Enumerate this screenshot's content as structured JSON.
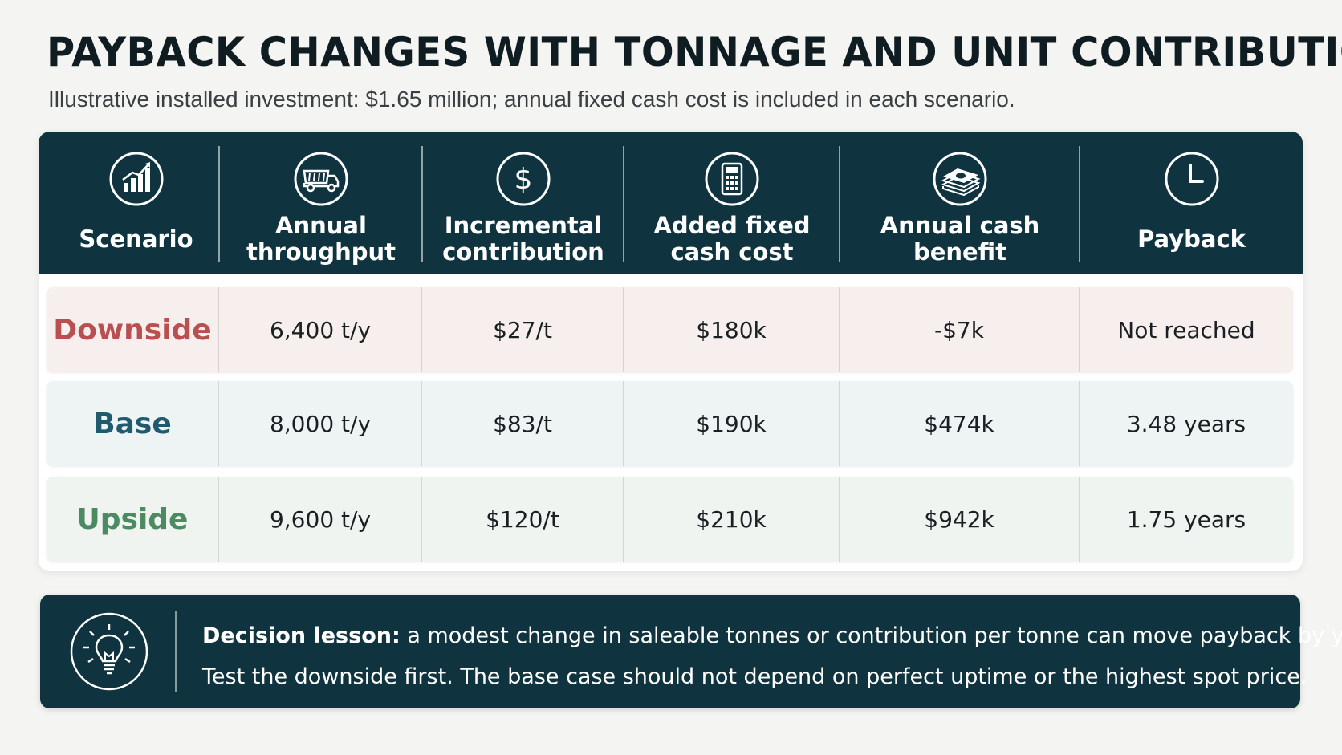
{
  "title": "PAYBACK CHANGES WITH TONNAGE AND UNIT CONTRIBUTION",
  "subtitle": "Illustrative installed investment: $1.65 million; annual fixed cash cost is included in each scenario.",
  "colors": {
    "header_bg": "#0f3440",
    "downside": "#b9504f",
    "base": "#1f5a6e",
    "upside": "#4c8a62"
  },
  "columns": [
    {
      "label": "Scenario",
      "icon": "bar-chart-icon"
    },
    {
      "label": "Annual\nthroughput",
      "icon": "dump-truck-icon"
    },
    {
      "label": "Incremental\ncontribution",
      "icon": "dollar-icon"
    },
    {
      "label": "Added fixed\ncash cost",
      "icon": "calculator-icon"
    },
    {
      "label": "Annual cash\nbenefit",
      "icon": "cash-stack-icon"
    },
    {
      "label": "Payback",
      "icon": "clock-icon"
    }
  ],
  "rows": [
    {
      "scenario": "Downside",
      "throughput": "6,400 t/y",
      "contribution": "$27/t",
      "fixed_cost": "$180k",
      "benefit": "-$7k",
      "payback": "Not reached"
    },
    {
      "scenario": "Base",
      "throughput": "8,000 t/y",
      "contribution": "$83/t",
      "fixed_cost": "$190k",
      "benefit": "$474k",
      "payback": "3.48 years"
    },
    {
      "scenario": "Upside",
      "throughput": "9,600 t/y",
      "contribution": "$120/t",
      "fixed_cost": "$210k",
      "benefit": "$942k",
      "payback": "1.75 years"
    }
  ],
  "lesson": {
    "icon": "lightbulb-icon",
    "heading": "Decision lesson:",
    "line1": " a modest change in saleable tonnes or contribution per tonne can move payback by years.",
    "line2": "Test the downside first. The base case should not depend on perfect uptime or the highest spot price."
  }
}
